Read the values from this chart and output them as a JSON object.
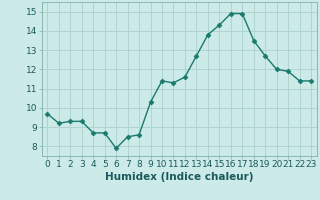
{
  "x": [
    0,
    1,
    2,
    3,
    4,
    5,
    6,
    7,
    8,
    9,
    10,
    11,
    12,
    13,
    14,
    15,
    16,
    17,
    18,
    19,
    20,
    21,
    22,
    23
  ],
  "y": [
    9.7,
    9.2,
    9.3,
    9.3,
    8.7,
    8.7,
    7.9,
    8.5,
    8.6,
    10.3,
    11.4,
    11.3,
    11.6,
    12.7,
    13.8,
    14.3,
    14.9,
    14.9,
    13.5,
    12.7,
    12.0,
    11.9,
    11.4,
    11.4
  ],
  "xlabel": "Humidex (Indice chaleur)",
  "xlim": [
    -0.5,
    23.5
  ],
  "ylim": [
    7.5,
    15.5
  ],
  "yticks": [
    8,
    9,
    10,
    11,
    12,
    13,
    14,
    15
  ],
  "xticks": [
    0,
    1,
    2,
    3,
    4,
    5,
    6,
    7,
    8,
    9,
    10,
    11,
    12,
    13,
    14,
    15,
    16,
    17,
    18,
    19,
    20,
    21,
    22,
    23
  ],
  "line_color": "#1a7a6e",
  "marker_size": 2.5,
  "bg_color": "#cceae7",
  "grid_color": "#b0d4d0",
  "xlabel_fontsize": 7.5,
  "tick_fontsize": 6.5
}
